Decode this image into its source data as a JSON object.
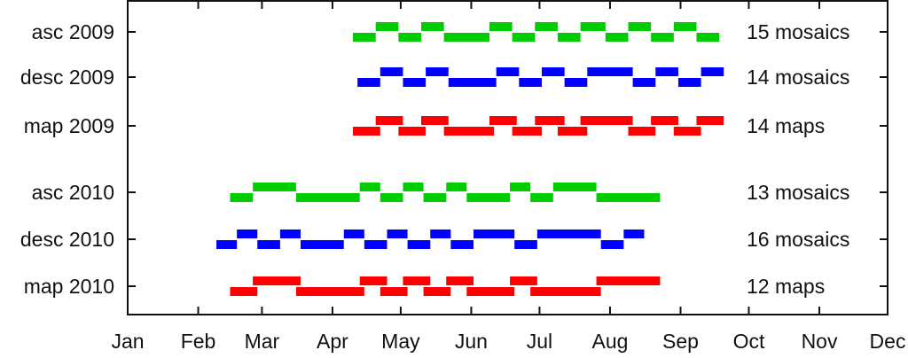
{
  "chart_data": {
    "type": "timeline",
    "x_axis": {
      "type": "date (month-day)",
      "range": [
        "01-01",
        "12-01"
      ],
      "tick_labels": [
        "Jan",
        "Feb",
        "Mar",
        "Apr",
        "May",
        "Jun",
        "Jul",
        "Aug",
        "Sep",
        "Oct",
        "Nov",
        "Dec"
      ],
      "tick_dates": [
        "01-01",
        "02-01",
        "03-01",
        "04-01",
        "05-01",
        "06-01",
        "07-01",
        "08-01",
        "09-01",
        "10-01",
        "11-01",
        "12-01"
      ]
    },
    "grid": false,
    "legend": "none",
    "rows": [
      {
        "label": "asc 2009",
        "right_label": "15 mosaics",
        "color": "#00cc00",
        "segments": [
          [
            "04-10",
            "04-20",
            0
          ],
          [
            "04-20",
            "04-30",
            1
          ],
          [
            "04-30",
            "05-10",
            0
          ],
          [
            "05-10",
            "05-20",
            1
          ],
          [
            "05-20",
            "06-09",
            0
          ],
          [
            "06-09",
            "06-19",
            1
          ],
          [
            "06-19",
            "06-29",
            0
          ],
          [
            "06-29",
            "07-09",
            1
          ],
          [
            "07-09",
            "07-19",
            0
          ],
          [
            "07-19",
            "07-30",
            1
          ],
          [
            "07-30",
            "08-09",
            0
          ],
          [
            "08-09",
            "08-19",
            1
          ],
          [
            "08-19",
            "08-29",
            0
          ],
          [
            "08-29",
            "09-08",
            1
          ],
          [
            "09-08",
            "09-18",
            0
          ]
        ]
      },
      {
        "label": "desc 2009",
        "right_label": "14 mosaics",
        "color": "#0000ff",
        "segments": [
          [
            "04-12",
            "04-22",
            0
          ],
          [
            "04-22",
            "05-02",
            1
          ],
          [
            "05-02",
            "05-12",
            0
          ],
          [
            "05-12",
            "05-22",
            1
          ],
          [
            "05-22",
            "06-12",
            0
          ],
          [
            "06-12",
            "06-22",
            1
          ],
          [
            "06-22",
            "07-02",
            0
          ],
          [
            "07-02",
            "07-12",
            1
          ],
          [
            "07-12",
            "07-22",
            0
          ],
          [
            "07-22",
            "08-11",
            1
          ],
          [
            "08-11",
            "08-21",
            0
          ],
          [
            "08-21",
            "08-31",
            1
          ],
          [
            "08-31",
            "09-10",
            0
          ],
          [
            "09-10",
            "09-20",
            1
          ]
        ]
      },
      {
        "label": "map 2009",
        "right_label": "14 maps",
        "color": "#ff0000",
        "segments": [
          [
            "04-10",
            "04-22",
            0
          ],
          [
            "04-20",
            "05-02",
            1
          ],
          [
            "04-30",
            "05-12",
            0
          ],
          [
            "05-10",
            "05-22",
            1
          ],
          [
            "05-20",
            "06-11",
            0
          ],
          [
            "06-09",
            "06-21",
            1
          ],
          [
            "06-19",
            "07-02",
            0
          ],
          [
            "06-29",
            "07-12",
            1
          ],
          [
            "07-09",
            "07-22",
            0
          ],
          [
            "07-19",
            "08-11",
            1
          ],
          [
            "08-09",
            "08-21",
            0
          ],
          [
            "08-19",
            "08-31",
            1
          ],
          [
            "08-29",
            "09-10",
            0
          ],
          [
            "09-08",
            "09-20",
            1
          ]
        ]
      },
      {
        "label": "asc 2010",
        "right_label": "13 mosaics",
        "color": "#00cc00",
        "segments": [
          [
            "02-15",
            "02-25",
            0
          ],
          [
            "02-25",
            "03-16",
            1
          ],
          [
            "03-16",
            "04-13",
            0
          ],
          [
            "04-13",
            "04-22",
            1
          ],
          [
            "04-22",
            "05-02",
            0
          ],
          [
            "05-02",
            "05-11",
            1
          ],
          [
            "05-11",
            "05-21",
            0
          ],
          [
            "05-21",
            "05-30",
            1
          ],
          [
            "05-30",
            "06-18",
            0
          ],
          [
            "06-18",
            "06-27",
            1
          ],
          [
            "06-27",
            "07-07",
            0
          ],
          [
            "07-07",
            "07-26",
            1
          ],
          [
            "07-26",
            "08-23",
            0
          ]
        ]
      },
      {
        "label": "desc 2010",
        "right_label": "16 mosaics",
        "color": "#0000ff",
        "segments": [
          [
            "02-09",
            "02-18",
            0
          ],
          [
            "02-18",
            "02-27",
            1
          ],
          [
            "02-27",
            "03-09",
            0
          ],
          [
            "03-09",
            "03-18",
            1
          ],
          [
            "03-18",
            "04-06",
            0
          ],
          [
            "04-06",
            "04-15",
            1
          ],
          [
            "04-15",
            "04-25",
            0
          ],
          [
            "04-25",
            "05-04",
            1
          ],
          [
            "05-04",
            "05-14",
            0
          ],
          [
            "05-14",
            "05-23",
            1
          ],
          [
            "05-23",
            "06-02",
            0
          ],
          [
            "06-02",
            "06-20",
            1
          ],
          [
            "06-20",
            "06-30",
            0
          ],
          [
            "06-30",
            "07-28",
            1
          ],
          [
            "07-28",
            "08-07",
            0
          ],
          [
            "08-07",
            "08-16",
            1
          ]
        ]
      },
      {
        "label": "map 2010",
        "right_label": "12 maps",
        "color": "#ff0000",
        "segments": [
          [
            "02-15",
            "02-27",
            0
          ],
          [
            "02-25",
            "03-18",
            1
          ],
          [
            "03-16",
            "04-15",
            0
          ],
          [
            "04-13",
            "04-25",
            1
          ],
          [
            "04-22",
            "05-04",
            0
          ],
          [
            "05-02",
            "05-14",
            1
          ],
          [
            "05-11",
            "05-23",
            0
          ],
          [
            "05-21",
            "06-02",
            1
          ],
          [
            "05-30",
            "06-20",
            0
          ],
          [
            "06-18",
            "06-30",
            1
          ],
          [
            "06-27",
            "07-28",
            0
          ],
          [
            "07-26",
            "08-23",
            1
          ]
        ]
      }
    ]
  }
}
